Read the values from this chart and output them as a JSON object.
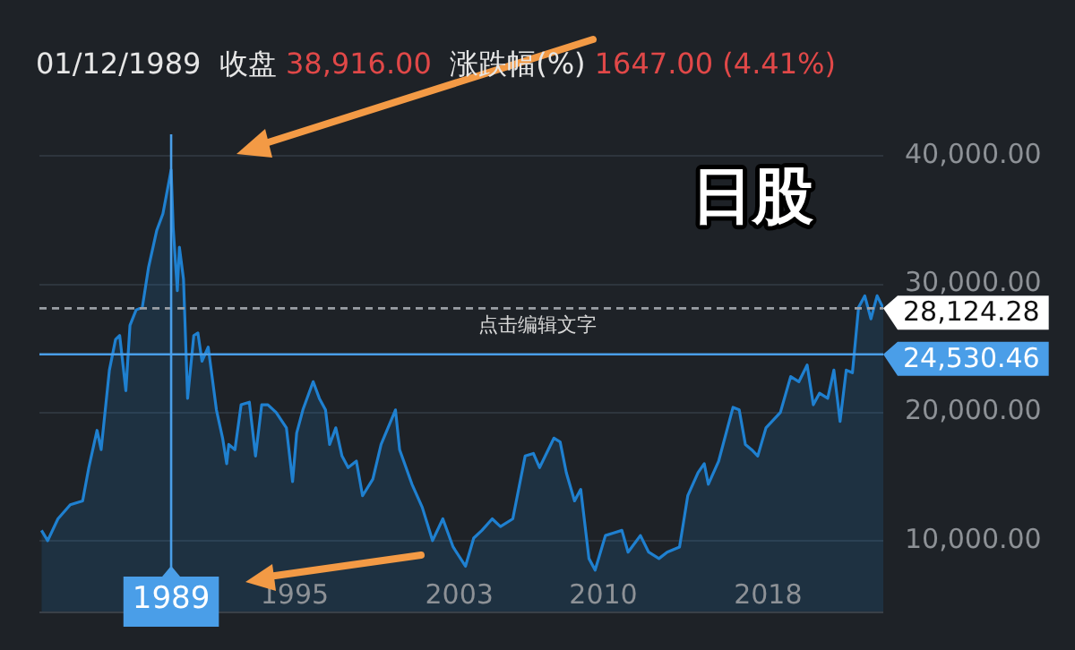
{
  "chart_data": {
    "type": "area",
    "title": "01/12/1989  收盘 38,916.00  涨跌幅(%) 1647.00 (4.41%)",
    "annotations": [
      "日股",
      "点击编辑文字"
    ],
    "x": [
      1982.7,
      1983.0,
      1983.5,
      1984.1,
      1984.7,
      1985.0,
      1985.4,
      1985.6,
      1986.0,
      1986.3,
      1986.5,
      1986.8,
      1987.0,
      1987.3,
      1987.6,
      1987.9,
      1988.3,
      1988.6,
      1989.0,
      1989.1,
      1989.3,
      1989.4,
      1989.6,
      1989.8,
      1990.1,
      1990.3,
      1990.5,
      1990.8,
      1991.2,
      1991.5,
      1991.7,
      1991.8,
      1992.1,
      1992.4,
      1992.8,
      1993.1,
      1993.4,
      1993.7,
      1994.1,
      1994.6,
      1994.9,
      1995.1,
      1995.4,
      1995.9,
      1996.2,
      1996.5,
      1996.7,
      1997.0,
      1997.3,
      1997.6,
      1998.0,
      1998.3,
      1998.8,
      1999.2,
      1999.9,
      2000.1,
      2000.7,
      2001.2,
      2001.7,
      2002.2,
      2002.7,
      2003.3,
      2003.7,
      2004.1,
      2004.6,
      2005.0,
      2005.6,
      2006.2,
      2006.6,
      2006.9,
      2007.6,
      2007.9,
      2008.2,
      2008.6,
      2008.9,
      2009.3,
      2009.6,
      2010.1,
      2010.5,
      2010.9,
      2011.2,
      2011.8,
      2012.2,
      2012.7,
      2013.1,
      2013.7,
      2014.1,
      2014.6,
      2014.9,
      2015.1,
      2015.6,
      2016.3,
      2016.6,
      2016.9,
      2017.2,
      2017.5,
      2017.9,
      2018.6,
      2019.1,
      2019.5,
      2019.9,
      2020.2,
      2020.5,
      2020.9,
      2021.2,
      2021.5,
      2021.8,
      2022.1,
      2022.4,
      2022.7,
      2023.0,
      2023.3,
      2023.6
    ],
    "series": [
      {
        "color": "#1f80d0",
        "values": [
          10800,
          10000,
          11700,
          12800,
          13100,
          15700,
          18600,
          17100,
          23300,
          25700,
          26000,
          21700,
          26800,
          28000,
          28200,
          31300,
          34200,
          35500,
          38916,
          34400,
          29500,
          32900,
          30400,
          21100,
          26000,
          26200,
          24000,
          25100,
          20200,
          18000,
          16000,
          17500,
          17100,
          20600,
          20800,
          16600,
          20600,
          20600,
          20000,
          18800,
          14600,
          18400,
          20200,
          22400,
          21100,
          20200,
          17500,
          18800,
          16600,
          15700,
          16200,
          13500,
          14800,
          17500,
          20200,
          17100,
          14400,
          12600,
          10000,
          11700,
          9500,
          8000,
          10200,
          10800,
          11700,
          11100,
          11700,
          16600,
          16800,
          15700,
          18000,
          17700,
          15300,
          13100,
          14000,
          8600,
          7700,
          10400,
          10600,
          10800,
          9100,
          10400,
          9100,
          8600,
          9100,
          9500,
          13500,
          15300,
          16000,
          14400,
          16200,
          20400,
          20200,
          17500,
          17100,
          16600,
          18800,
          20000,
          22800,
          22400,
          23700,
          20600,
          21500,
          21100,
          23300,
          19300,
          23300,
          23100,
          28200,
          29100,
          27300,
          29100,
          28124
        ]
      }
    ],
    "xlim": [
      1982.6,
      2023.6
    ],
    "ylim": [
      4400,
      41700
    ],
    "xticks": [
      1995,
      2003,
      2010,
      2018
    ],
    "yticks": [
      {
        "value": 10000,
        "label": "10,000.00"
      },
      {
        "value": 20000,
        "label": "20,000.00"
      },
      {
        "value": 30000,
        "label": "30,000.00"
      },
      {
        "value": 40000,
        "label": "40,000.00"
      }
    ],
    "grid": "y",
    "legend": false,
    "marker": "none",
    "line_style": "solid",
    "ref_lines": [
      {
        "axis": "y",
        "value": 28124.28,
        "label": "28,124.28",
        "color": "#9a9fa5",
        "line_style": "dashed"
      },
      {
        "axis": "y",
        "value": 24530.46,
        "label": "24,530.46",
        "color": "#4a9ee8",
        "line_style": "solid"
      },
      {
        "axis": "x",
        "value": 1989,
        "label": "1989",
        "color": "#4a9ee8",
        "line_style": "solid"
      }
    ]
  }
}
